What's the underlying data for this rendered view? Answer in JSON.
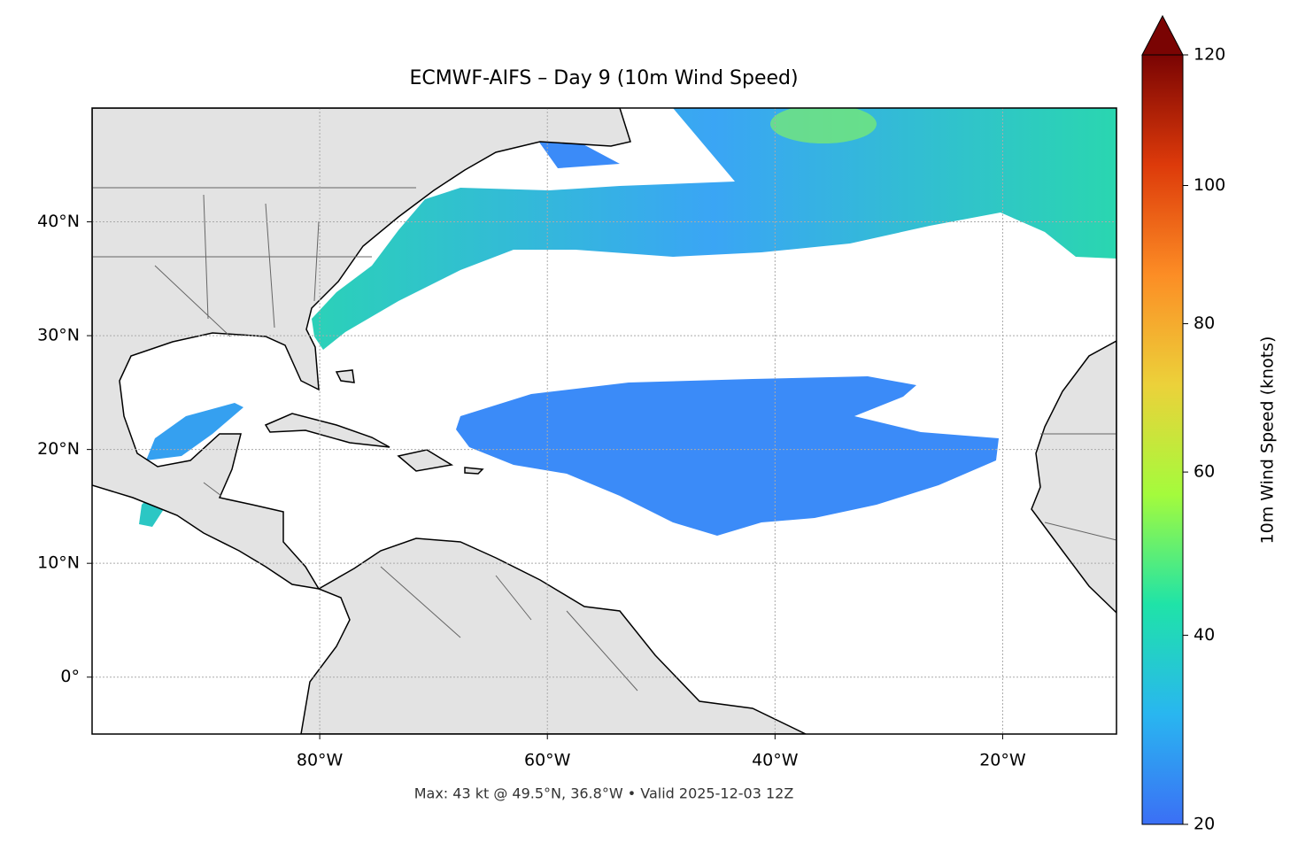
{
  "chart_data": {
    "type": "map",
    "title": "ECMWF-AIFS – Day 9 (10m Wind Speed)",
    "subtitle": "Max: 43 kt @ 49.5°N, 36.8°W • Valid 2025-12-03 12Z",
    "xlim": [
      -100,
      -10
    ],
    "ylim": [
      -5,
      50
    ],
    "xticks": [
      {
        "value": -80,
        "label": "80°W"
      },
      {
        "value": -60,
        "label": "60°W"
      },
      {
        "value": -40,
        "label": "40°W"
      },
      {
        "value": -20,
        "label": "20°W"
      }
    ],
    "yticks": [
      {
        "value": 0,
        "label": "0°"
      },
      {
        "value": 10,
        "label": "10°N"
      },
      {
        "value": 20,
        "label": "20°N"
      },
      {
        "value": 30,
        "label": "30°N"
      },
      {
        "value": 40,
        "label": "40°N"
      }
    ],
    "grid": true,
    "colorbar": {
      "label": "10m Wind Speed (knots)",
      "lim": [
        20,
        120
      ],
      "ticks": [
        20,
        40,
        60,
        80,
        100,
        120
      ],
      "extend": "max",
      "colors": [
        "#3b6ff5",
        "#29b6f0",
        "#1fe3a8",
        "#a4fb3c",
        "#ecd13a",
        "#fc8d25",
        "#dd3a0a",
        "#7a0403"
      ]
    }
  }
}
